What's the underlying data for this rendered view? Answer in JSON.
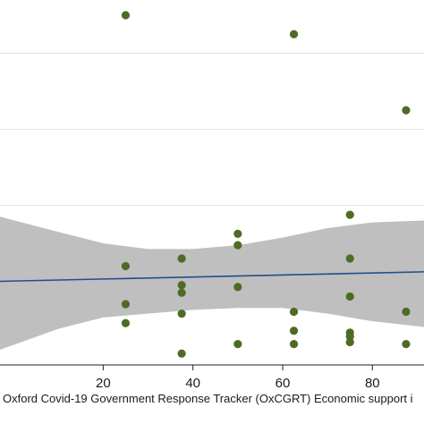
{
  "chart_data": {
    "type": "scatter",
    "title": "",
    "xlabel": "Oxford Covid-19 Government Response Tracker (OxCGRT) Economic support i",
    "ylabel": "",
    "xlim": [
      -3,
      91.5
    ],
    "ylim": [
      -0.2,
      9.4
    ],
    "x_ticks": [
      20,
      40,
      60,
      80
    ],
    "grid": "horizontal",
    "legend": "none",
    "colors": {
      "points": "#4e6b26",
      "fit_line": "#1f4e8c",
      "confidence_band": "#b8b8b8",
      "grid": "#e6e6e6",
      "axis": "#222222"
    },
    "points": [
      {
        "x": 25,
        "y": 9.0
      },
      {
        "x": 25,
        "y": 2.4
      },
      {
        "x": 25,
        "y": 1.4
      },
      {
        "x": 25,
        "y": 0.9
      },
      {
        "x": 37.5,
        "y": 2.6
      },
      {
        "x": 37.5,
        "y": 1.9
      },
      {
        "x": 37.5,
        "y": 1.7
      },
      {
        "x": 37.5,
        "y": 1.15
      },
      {
        "x": 37.5,
        "y": 0.1
      },
      {
        "x": 50,
        "y": 3.25
      },
      {
        "x": 50,
        "y": 2.95
      },
      {
        "x": 50,
        "y": 1.85
      },
      {
        "x": 50,
        "y": 0.35
      },
      {
        "x": 62.5,
        "y": 8.5
      },
      {
        "x": 62.5,
        "y": 1.2
      },
      {
        "x": 62.5,
        "y": 0.7
      },
      {
        "x": 62.5,
        "y": 0.35
      },
      {
        "x": 75,
        "y": 3.75
      },
      {
        "x": 75,
        "y": 2.6
      },
      {
        "x": 75,
        "y": 1.6
      },
      {
        "x": 75,
        "y": 0.65
      },
      {
        "x": 75,
        "y": 0.55
      },
      {
        "x": 75,
        "y": 0.4
      },
      {
        "x": 87.5,
        "y": 6.5
      },
      {
        "x": 87.5,
        "y": 1.2
      },
      {
        "x": 87.5,
        "y": 0.35
      }
    ],
    "fit_line": [
      {
        "x": -3,
        "y": 2.0
      },
      {
        "x": 91.5,
        "y": 2.25
      }
    ],
    "confidence_band": {
      "x": [
        -3,
        10,
        20,
        30,
        40,
        50,
        60,
        70,
        80,
        91.5
      ],
      "upper": [
        3.7,
        3.3,
        3.0,
        2.85,
        2.85,
        2.95,
        3.15,
        3.4,
        3.55,
        3.6
      ],
      "lower": [
        0.2,
        0.75,
        1.05,
        1.15,
        1.25,
        1.3,
        1.3,
        1.15,
        0.95,
        0.8
      ]
    }
  }
}
